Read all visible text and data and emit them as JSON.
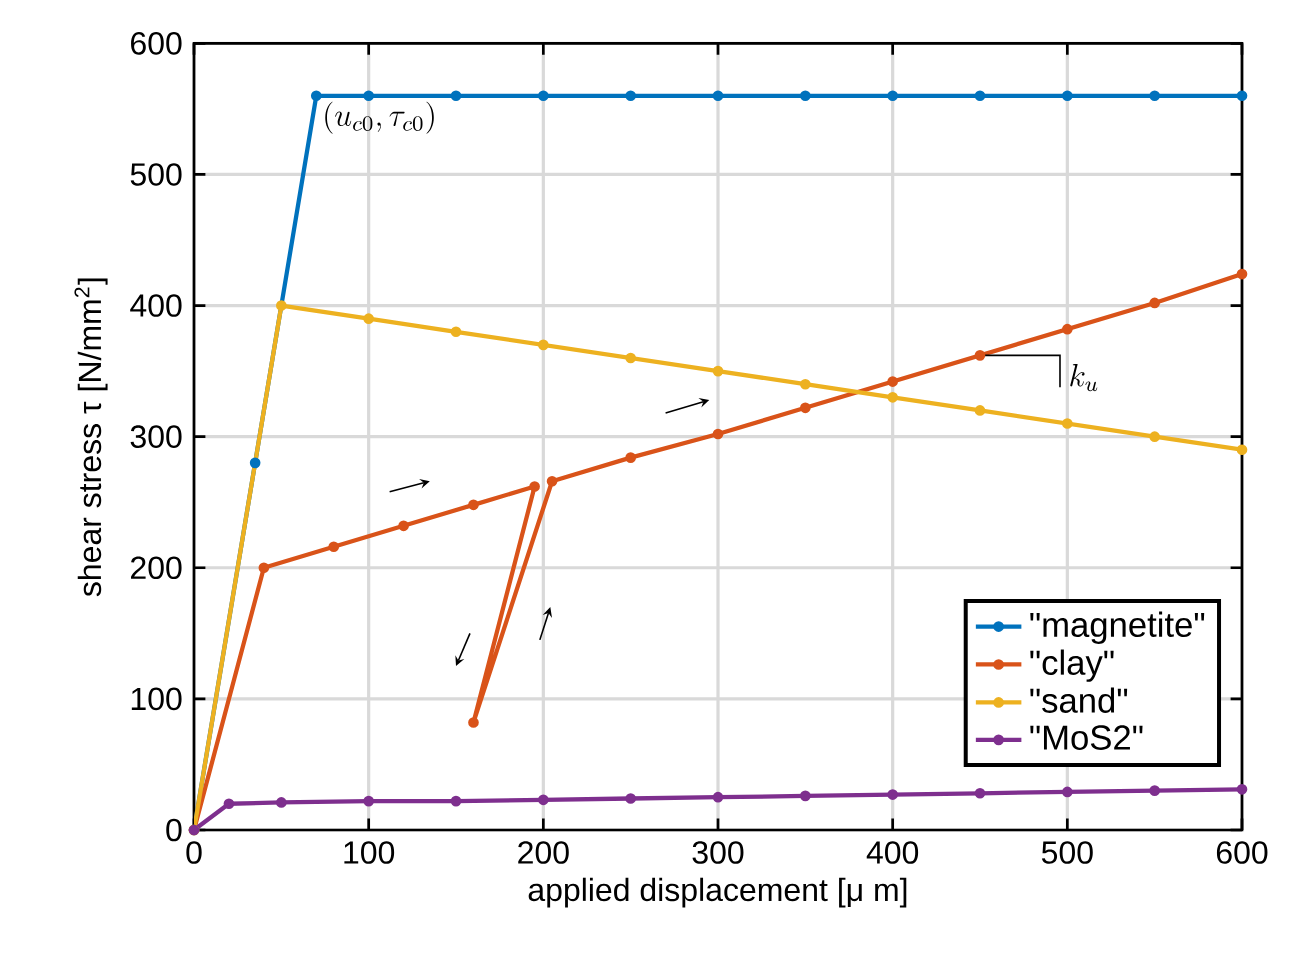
{
  "chart_data": {
    "type": "line",
    "xlabel": "applied displacement [μ m]",
    "ylabel": "shear stress τ [N/mm$^{2}$]",
    "xlim": [
      0,
      600
    ],
    "ylim": [
      0,
      600
    ],
    "xticks": [
      0,
      100,
      200,
      300,
      400,
      500,
      600
    ],
    "yticks": [
      0,
      100,
      200,
      300,
      400,
      500,
      600
    ],
    "grid": true,
    "legend": "bottom right",
    "marker": "circle",
    "line_style": "solid",
    "series": [
      {
        "name": "\"magnetite\"",
        "color": "#0072bd",
        "x": [
          0,
          35,
          70,
          100,
          150,
          200,
          250,
          300,
          350,
          400,
          450,
          500,
          550,
          600
        ],
        "values": [
          0,
          280,
          560,
          560,
          560,
          560,
          560,
          560,
          560,
          560,
          560,
          560,
          560,
          560
        ]
      },
      {
        "name": "\"clay\"",
        "color": "#d95319",
        "x": [
          0,
          40,
          80,
          120,
          160,
          195,
          160,
          205,
          250,
          300,
          350,
          400,
          450,
          500,
          550,
          600
        ],
        "values": [
          0,
          200,
          216,
          232,
          248,
          262,
          82,
          266,
          284,
          302,
          322,
          342,
          362,
          382,
          402,
          424
        ]
      },
      {
        "name": "\"sand\"",
        "color": "#edb120",
        "x": [
          0,
          50,
          100,
          150,
          200,
          250,
          300,
          350,
          400,
          450,
          500,
          550,
          600
        ],
        "values": [
          0,
          400,
          390,
          380,
          370,
          360,
          350,
          340,
          330,
          320,
          310,
          300,
          290
        ]
      },
      {
        "name": "\"MoS2\"",
        "color": "#7e2f8e",
        "x": [
          0,
          20,
          50,
          100,
          150,
          200,
          250,
          300,
          350,
          400,
          450,
          500,
          550,
          600
        ],
        "values": [
          0,
          20,
          21,
          22,
          22,
          23,
          24,
          25,
          26,
          27,
          28,
          29,
          30,
          31
        ]
      }
    ],
    "annotations": [
      {
        "text": "(u_{c0},\\tau_{c0})",
        "x": 70,
        "y": 560
      },
      {
        "text": "k_u",
        "x": 450,
        "y": 362
      }
    ]
  }
}
